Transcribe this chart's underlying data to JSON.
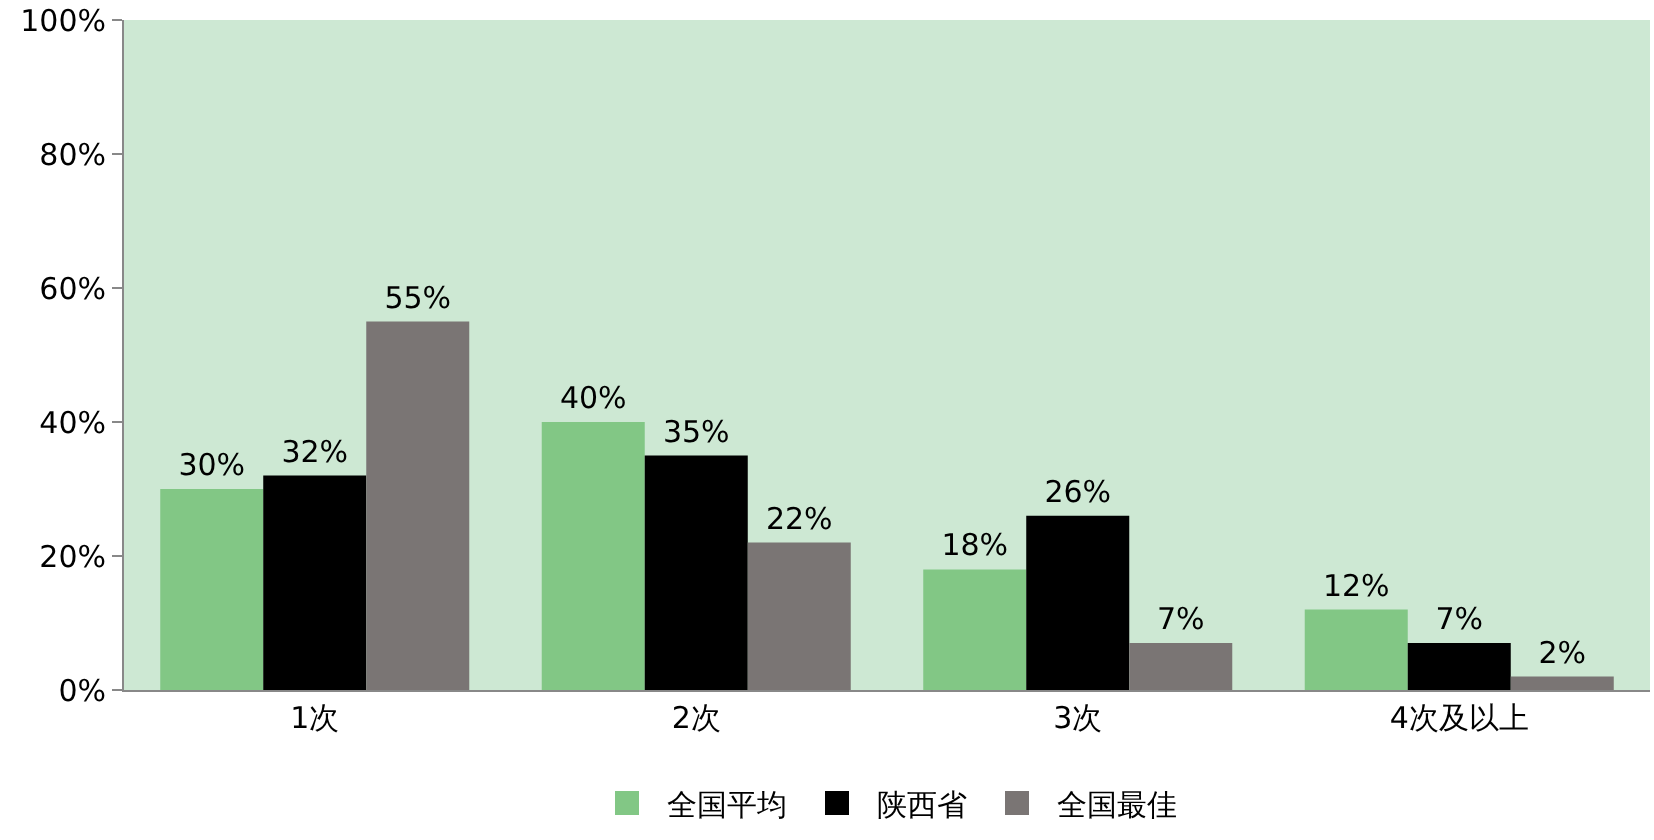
{
  "chart_data": {
    "type": "bar",
    "categories": [
      "1次",
      "2次",
      "3次",
      "4次及以上"
    ],
    "series": [
      {
        "name": "全国平均",
        "color": "#82c785",
        "values": [
          30,
          40,
          18,
          12
        ],
        "value_labels": [
          "30%",
          "40%",
          "18%",
          "12%"
        ]
      },
      {
        "name": "陕西省",
        "color": "#000000",
        "values": [
          32,
          35,
          26,
          7
        ],
        "value_labels": [
          "32%",
          "35%",
          "26%",
          "7%"
        ]
      },
      {
        "name": "全国最佳",
        "color": "#7a7574",
        "values": [
          55,
          22,
          7,
          2
        ],
        "value_labels": [
          "55%",
          "22%",
          "7%",
          "2%"
        ]
      }
    ],
    "ylim": [
      0,
      100
    ],
    "yticks": [
      {
        "value": 0,
        "label": "0%"
      },
      {
        "value": 20,
        "label": "20%"
      },
      {
        "value": 40,
        "label": "40%"
      },
      {
        "value": 60,
        "label": "60%"
      },
      {
        "value": 80,
        "label": "80%"
      },
      {
        "value": 100,
        "label": "100%"
      }
    ],
    "grid": false,
    "legend": "bottom"
  }
}
